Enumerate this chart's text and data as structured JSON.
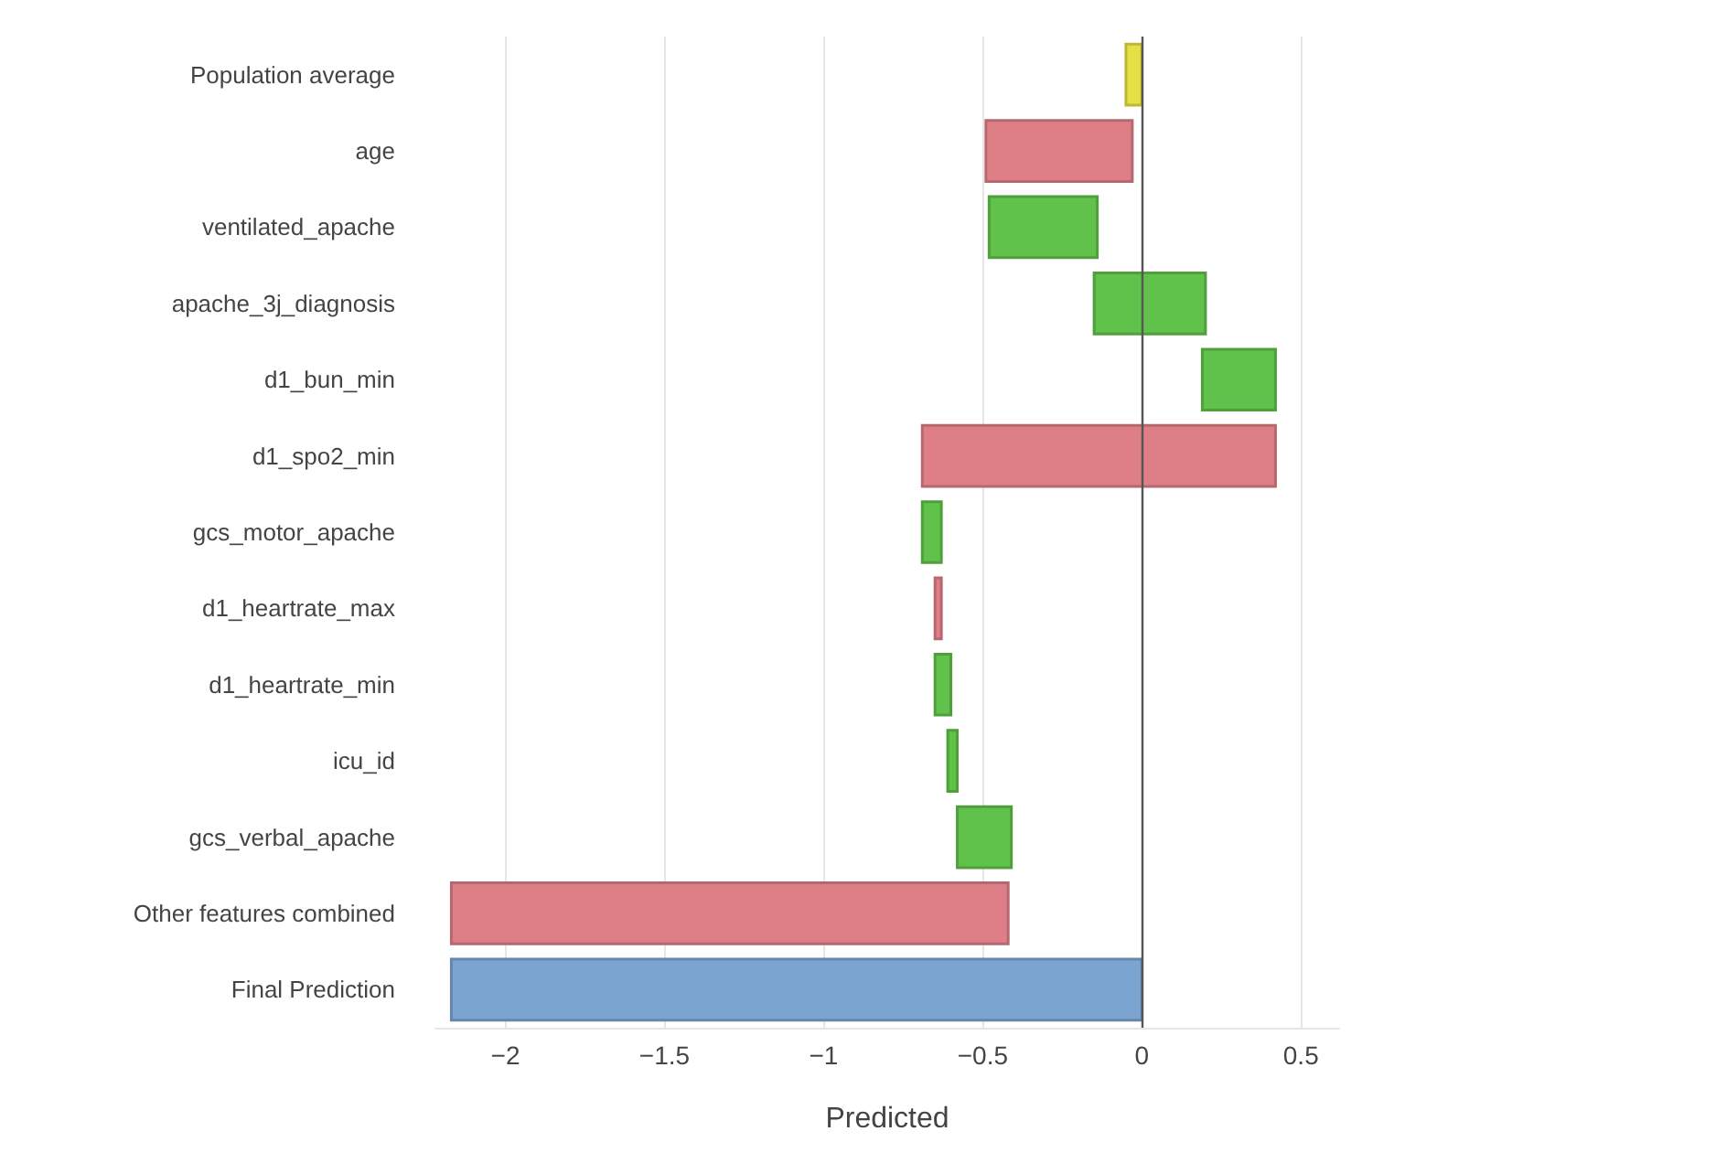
{
  "chart_data": {
    "type": "bar",
    "orientation": "horizontal",
    "xlabel": "Predicted",
    "categories": [
      "Population average",
      "age",
      "ventilated_apache",
      "apache_3j_diagnosis",
      "d1_bun_min",
      "d1_spo2_min",
      "gcs_motor_apache",
      "d1_heartrate_max",
      "d1_heartrate_min",
      "icu_id",
      "gcs_verbal_apache",
      "Other features combined",
      "Final Prediction"
    ],
    "base": [
      0,
      -0.03,
      -0.48,
      -0.15,
      0.19,
      0.42,
      -0.69,
      -0.63,
      -0.65,
      -0.61,
      -0.58,
      -0.42,
      0
    ],
    "values": [
      -0.05,
      -0.46,
      0.34,
      0.35,
      0.23,
      -1.11,
      0.06,
      -0.02,
      0.05,
      0.03,
      0.17,
      -1.75,
      -2.17
    ],
    "colors": [
      "#e6df45",
      "#de7f88",
      "#60c24b",
      "#60c24b",
      "#60c24b",
      "#de7f88",
      "#60c24b",
      "#de7f88",
      "#60c24b",
      "#60c24b",
      "#60c24b",
      "#de7f88",
      "#7ca4d0"
    ],
    "xlim": [
      -2.22,
      0.62
    ],
    "xticks": [
      -2,
      -1.5,
      -1,
      -0.5,
      0,
      0.5
    ],
    "grid": "x",
    "ref_lines": [
      {
        "axis": "x",
        "value": 0,
        "color": "#555555"
      }
    ]
  }
}
